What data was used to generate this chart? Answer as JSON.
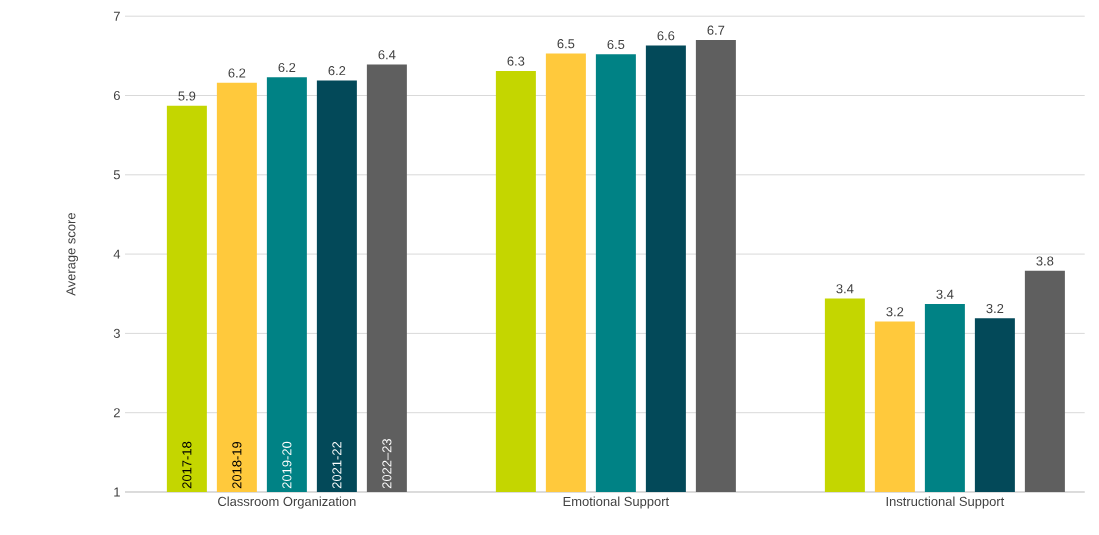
{
  "chart_data": {
    "type": "bar",
    "ylabel": "Average score",
    "categories": [
      "Classroom Organization",
      "Emotional Support",
      "Instructional Support"
    ],
    "series": [
      {
        "name": "2017-18",
        "color": "#c4d600",
        "values": [
          5.87,
          6.31,
          3.44
        ],
        "value_labels": [
          "5.9",
          "6.3",
          "3.4"
        ]
      },
      {
        "name": "2018-19",
        "color": "#ffc93c",
        "values": [
          6.16,
          6.53,
          3.15
        ],
        "value_labels": [
          "6.2",
          "6.5",
          "3.2"
        ]
      },
      {
        "name": "2019-20",
        "color": "#008285",
        "values": [
          6.23,
          6.52,
          3.37
        ],
        "value_labels": [
          "6.2",
          "6.5",
          "3.4"
        ]
      },
      {
        "name": "2021-22",
        "color": "#034959",
        "values": [
          6.19,
          6.63,
          3.19
        ],
        "value_labels": [
          "6.2",
          "6.6",
          "3.2"
        ]
      },
      {
        "name": "2022–23",
        "color": "#5f5f5f",
        "values": [
          6.39,
          6.7,
          3.79
        ],
        "value_labels": [
          "6.4",
          "6.7",
          "3.8"
        ]
      }
    ],
    "ylim": [
      1,
      7
    ],
    "yticks": [
      1,
      2,
      3,
      4,
      5,
      6,
      7
    ],
    "grid": "y"
  }
}
